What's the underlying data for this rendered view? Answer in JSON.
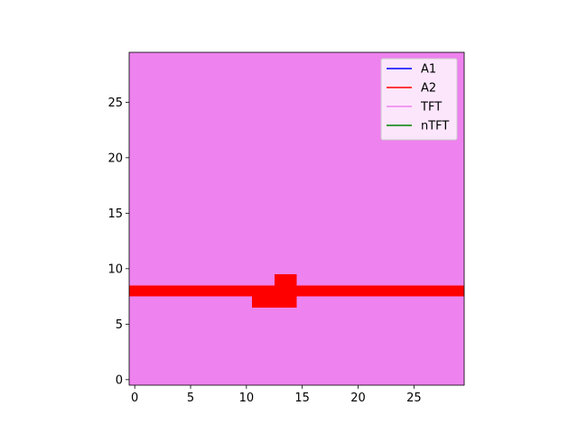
{
  "chart_data": {
    "type": "heatmap",
    "title": "",
    "xlabel": "",
    "ylabel": "",
    "xlim": [
      -0.5,
      29.5
    ],
    "ylim": [
      -0.5,
      29.5
    ],
    "xticks": [
      0,
      5,
      10,
      15,
      20,
      25
    ],
    "yticks": [
      0,
      5,
      10,
      15,
      20,
      25
    ],
    "grid": false,
    "legend_placement": "upper right",
    "background_category": "TFT",
    "series": [
      {
        "name": "A1",
        "color": "#0000ff"
      },
      {
        "name": "A2",
        "color": "#ff0000"
      },
      {
        "name": "TFT",
        "color": "#ee82ee"
      },
      {
        "name": "nTFT",
        "color": "#008000"
      }
    ],
    "regions": [
      {
        "category": "A2",
        "x_range": [
          -0.5,
          29.5
        ],
        "y_range": [
          7.5,
          8.5
        ]
      },
      {
        "category": "A2",
        "x_range": [
          10.5,
          14.5
        ],
        "y_range": [
          6.5,
          7.5
        ]
      },
      {
        "category": "A2",
        "x_range": [
          12.5,
          14.5
        ],
        "y_range": [
          8.5,
          9.5
        ]
      }
    ]
  }
}
